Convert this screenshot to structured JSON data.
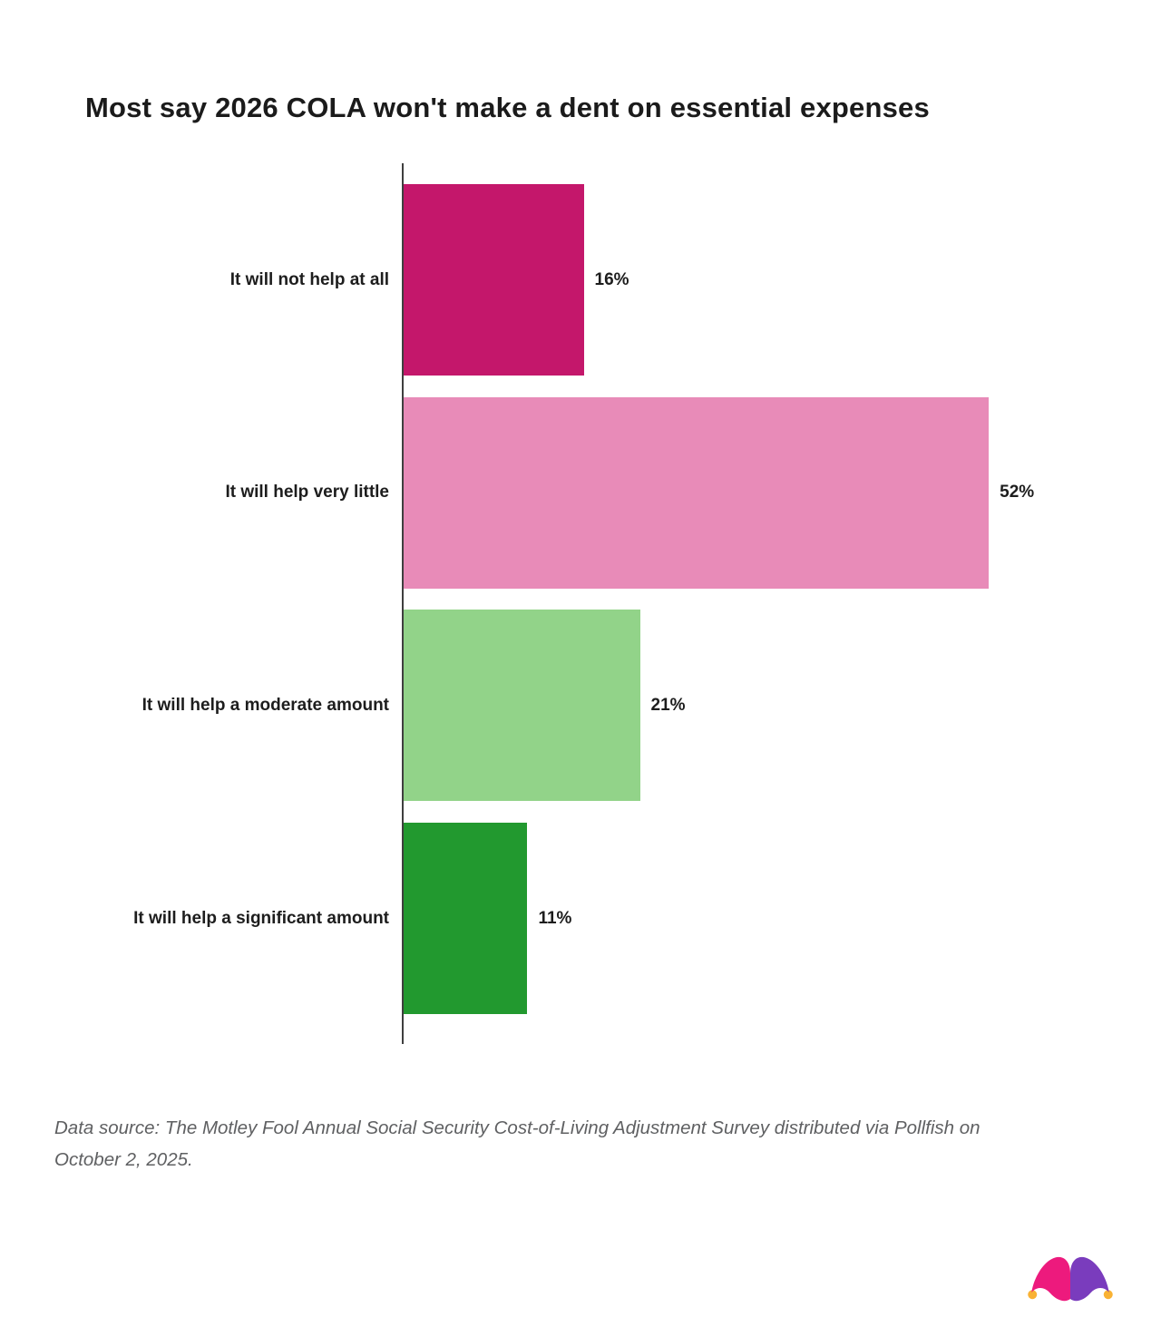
{
  "title": "Most say 2026 COLA won't make a dent on essential expenses",
  "chart_data": {
    "type": "bar",
    "orientation": "horizontal",
    "title": "Most say 2026 COLA won't make a dent on essential expenses",
    "categories": [
      "It will not help at all",
      "It will help very little",
      "It will help a moderate amount",
      "It will help a significant amount"
    ],
    "values": [
      16,
      52,
      21,
      11
    ],
    "value_labels": [
      "16%",
      "52%",
      "21%",
      "11%"
    ],
    "bar_colors": [
      "#c4176b",
      "#e88bb8",
      "#92d389",
      "#22992f"
    ],
    "xlabel": "",
    "ylabel": "",
    "xlim": [
      0,
      64
    ],
    "grid": false,
    "legend": false,
    "axis_line_color": "#3f3f3f"
  },
  "source_note": "Data source: The Motley Fool Annual Social Security Cost-of-Living Adjustment Survey distributed via Pollfish on October 2, 2025.",
  "logo": {
    "name": "motley-fool-jester-hat",
    "colors": {
      "left_lobe": "#ed1a7d",
      "right_lobe": "#7a3cbd",
      "bells": "#f9b234"
    }
  }
}
